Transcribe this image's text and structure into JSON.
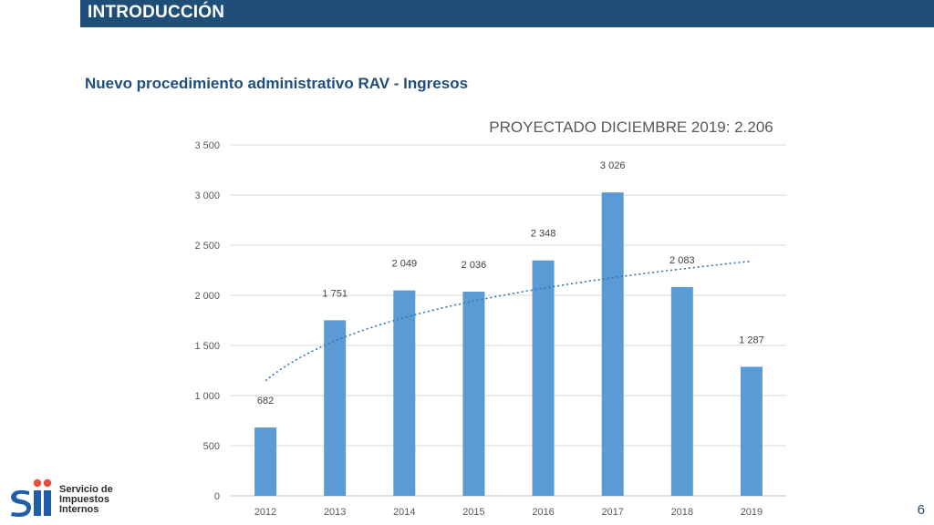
{
  "header": {
    "title": "INTRODUCCIÓN"
  },
  "subtitle": "Nuevo procedimiento administrativo RAV - Ingresos",
  "page_number": "6",
  "logo": {
    "line1": "Servicio de",
    "line2": "Impuestos",
    "line3": "Internos",
    "mark": "sii"
  },
  "colors": {
    "header_bg": "#1f4e79",
    "bar": "#5b9bd5",
    "trendline": "#2e75b6",
    "subtitle": "#1f4e79"
  },
  "chart_data": {
    "type": "bar",
    "title": "PROYECTADO DICIEMBRE 2019: 2.206",
    "categories": [
      "2012",
      "2013",
      "2014",
      "2015",
      "2016",
      "2017",
      "2018",
      "2019"
    ],
    "values": [
      682,
      1751,
      2049,
      2036,
      2348,
      3026,
      2083,
      1287
    ],
    "value_labels": [
      "682",
      "1 751",
      "2 049",
      "2 036",
      "2 348",
      "3 026",
      "2 083",
      "1 287"
    ],
    "ylim": [
      0,
      3500
    ],
    "yticks": [
      0,
      500,
      1000,
      1500,
      2000,
      2500,
      3000,
      3500
    ],
    "ytick_labels": [
      "0",
      "500",
      "1 000",
      "1 500",
      "2 000",
      "2 500",
      "3 000",
      "3 500"
    ],
    "grid": true,
    "trendline": {
      "type": "logarithmic",
      "style": "dotted"
    },
    "xlabel": "",
    "ylabel": ""
  }
}
